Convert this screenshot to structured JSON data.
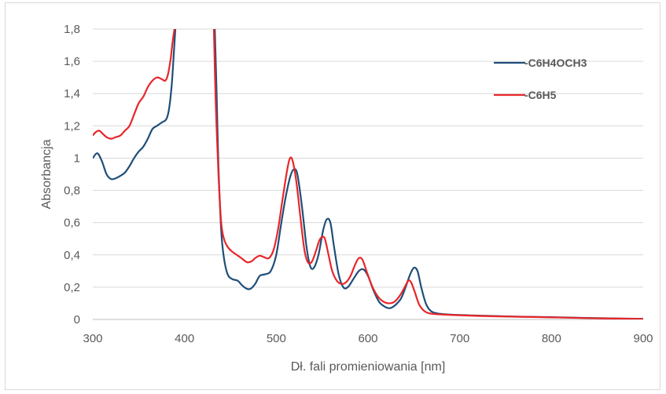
{
  "chart_data": {
    "type": "line",
    "title": "",
    "xlabel": "Dł. fali promieniowania [nm]",
    "ylabel": "Absorbancja",
    "xlim": [
      300,
      900
    ],
    "ylim": [
      0,
      1.8
    ],
    "x_ticks": [
      300,
      400,
      500,
      600,
      700,
      800,
      900
    ],
    "x_tick_labels": [
      "300",
      "400",
      "500",
      "600",
      "700",
      "800",
      "900"
    ],
    "y_ticks": [
      0,
      0.2,
      0.4,
      0.6,
      0.8,
      1.0,
      1.2,
      1.4,
      1.6,
      1.8
    ],
    "y_tick_labels": [
      "0",
      "0,2",
      "0,4",
      "0,6",
      "0,8",
      "1",
      "1,2",
      "1,4",
      "1,6",
      "1,8"
    ],
    "grid": "horizontal",
    "legend_position": "top-right",
    "series": [
      {
        "name": "-C6H4OCH3",
        "color": "#1f4e79",
        "points": [
          [
            300,
            1.0
          ],
          [
            305,
            1.03
          ],
          [
            310,
            0.98
          ],
          [
            315,
            0.9
          ],
          [
            320,
            0.87
          ],
          [
            325,
            0.875
          ],
          [
            330,
            0.89
          ],
          [
            335,
            0.91
          ],
          [
            340,
            0.95
          ],
          [
            345,
            1.0
          ],
          [
            350,
            1.04
          ],
          [
            355,
            1.07
          ],
          [
            360,
            1.12
          ],
          [
            365,
            1.18
          ],
          [
            370,
            1.2
          ],
          [
            375,
            1.22
          ],
          [
            380,
            1.24
          ],
          [
            383,
            1.3
          ],
          [
            386,
            1.45
          ],
          [
            388,
            1.62
          ],
          [
            390,
            1.8
          ],
          [
            null,
            null
          ],
          [
            433,
            1.8
          ],
          [
            435,
            1.4
          ],
          [
            437,
            0.95
          ],
          [
            440,
            0.55
          ],
          [
            443,
            0.38
          ],
          [
            447,
            0.28
          ],
          [
            452,
            0.25
          ],
          [
            458,
            0.24
          ],
          [
            463,
            0.21
          ],
          [
            468,
            0.19
          ],
          [
            472,
            0.19
          ],
          [
            477,
            0.22
          ],
          [
            482,
            0.27
          ],
          [
            488,
            0.28
          ],
          [
            494,
            0.3
          ],
          [
            500,
            0.4
          ],
          [
            505,
            0.58
          ],
          [
            510,
            0.75
          ],
          [
            515,
            0.88
          ],
          [
            519,
            0.93
          ],
          [
            523,
            0.9
          ],
          [
            528,
            0.7
          ],
          [
            533,
            0.45
          ],
          [
            537,
            0.33
          ],
          [
            541,
            0.32
          ],
          [
            546,
            0.4
          ],
          [
            551,
            0.55
          ],
          [
            555,
            0.62
          ],
          [
            559,
            0.6
          ],
          [
            563,
            0.45
          ],
          [
            568,
            0.28
          ],
          [
            573,
            0.2
          ],
          [
            578,
            0.2
          ],
          [
            584,
            0.25
          ],
          [
            590,
            0.3
          ],
          [
            595,
            0.31
          ],
          [
            600,
            0.27
          ],
          [
            606,
            0.18
          ],
          [
            612,
            0.11
          ],
          [
            618,
            0.08
          ],
          [
            624,
            0.07
          ],
          [
            630,
            0.09
          ],
          [
            636,
            0.13
          ],
          [
            641,
            0.2
          ],
          [
            646,
            0.28
          ],
          [
            650,
            0.32
          ],
          [
            654,
            0.3
          ],
          [
            658,
            0.2
          ],
          [
            663,
            0.1
          ],
          [
            668,
            0.055
          ],
          [
            675,
            0.038
          ],
          [
            690,
            0.03
          ],
          [
            720,
            0.024
          ],
          [
            760,
            0.018
          ],
          [
            800,
            0.014
          ],
          [
            850,
            0.008
          ],
          [
            900,
            0.004
          ]
        ]
      },
      {
        "name": "-C6H5",
        "color": "#e8262a",
        "points": [
          [
            300,
            1.14
          ],
          [
            303,
            1.16
          ],
          [
            307,
            1.17
          ],
          [
            311,
            1.15
          ],
          [
            315,
            1.13
          ],
          [
            320,
            1.12
          ],
          [
            325,
            1.13
          ],
          [
            330,
            1.14
          ],
          [
            335,
            1.17
          ],
          [
            340,
            1.2
          ],
          [
            345,
            1.27
          ],
          [
            350,
            1.34
          ],
          [
            355,
            1.38
          ],
          [
            360,
            1.44
          ],
          [
            365,
            1.48
          ],
          [
            370,
            1.5
          ],
          [
            375,
            1.49
          ],
          [
            379,
            1.48
          ],
          [
            382,
            1.52
          ],
          [
            385,
            1.62
          ],
          [
            387,
            1.72
          ],
          [
            389,
            1.8
          ],
          [
            null,
            null
          ],
          [
            432,
            1.8
          ],
          [
            434,
            1.35
          ],
          [
            437,
            0.9
          ],
          [
            440,
            0.6
          ],
          [
            443,
            0.5
          ],
          [
            447,
            0.45
          ],
          [
            452,
            0.42
          ],
          [
            457,
            0.4
          ],
          [
            462,
            0.38
          ],
          [
            468,
            0.355
          ],
          [
            473,
            0.36
          ],
          [
            477,
            0.38
          ],
          [
            482,
            0.395
          ],
          [
            487,
            0.385
          ],
          [
            492,
            0.38
          ],
          [
            497,
            0.43
          ],
          [
            502,
            0.56
          ],
          [
            507,
            0.75
          ],
          [
            512,
            0.93
          ],
          [
            515,
            1.0
          ],
          [
            518,
            0.98
          ],
          [
            522,
            0.85
          ],
          [
            527,
            0.6
          ],
          [
            531,
            0.42
          ],
          [
            535,
            0.35
          ],
          [
            539,
            0.36
          ],
          [
            543,
            0.42
          ],
          [
            547,
            0.49
          ],
          [
            550,
            0.51
          ],
          [
            553,
            0.5
          ],
          [
            557,
            0.4
          ],
          [
            561,
            0.3
          ],
          [
            566,
            0.24
          ],
          [
            571,
            0.22
          ],
          [
            576,
            0.23
          ],
          [
            581,
            0.27
          ],
          [
            586,
            0.34
          ],
          [
            590,
            0.38
          ],
          [
            594,
            0.37
          ],
          [
            599,
            0.29
          ],
          [
            605,
            0.2
          ],
          [
            611,
            0.14
          ],
          [
            617,
            0.11
          ],
          [
            623,
            0.1
          ],
          [
            629,
            0.11
          ],
          [
            635,
            0.15
          ],
          [
            640,
            0.2
          ],
          [
            644,
            0.24
          ],
          [
            647,
            0.23
          ],
          [
            651,
            0.17
          ],
          [
            656,
            0.09
          ],
          [
            662,
            0.05
          ],
          [
            670,
            0.035
          ],
          [
            690,
            0.028
          ],
          [
            720,
            0.022
          ],
          [
            760,
            0.017
          ],
          [
            800,
            0.013
          ],
          [
            850,
            0.007
          ],
          [
            900,
            0.003
          ]
        ]
      }
    ]
  }
}
